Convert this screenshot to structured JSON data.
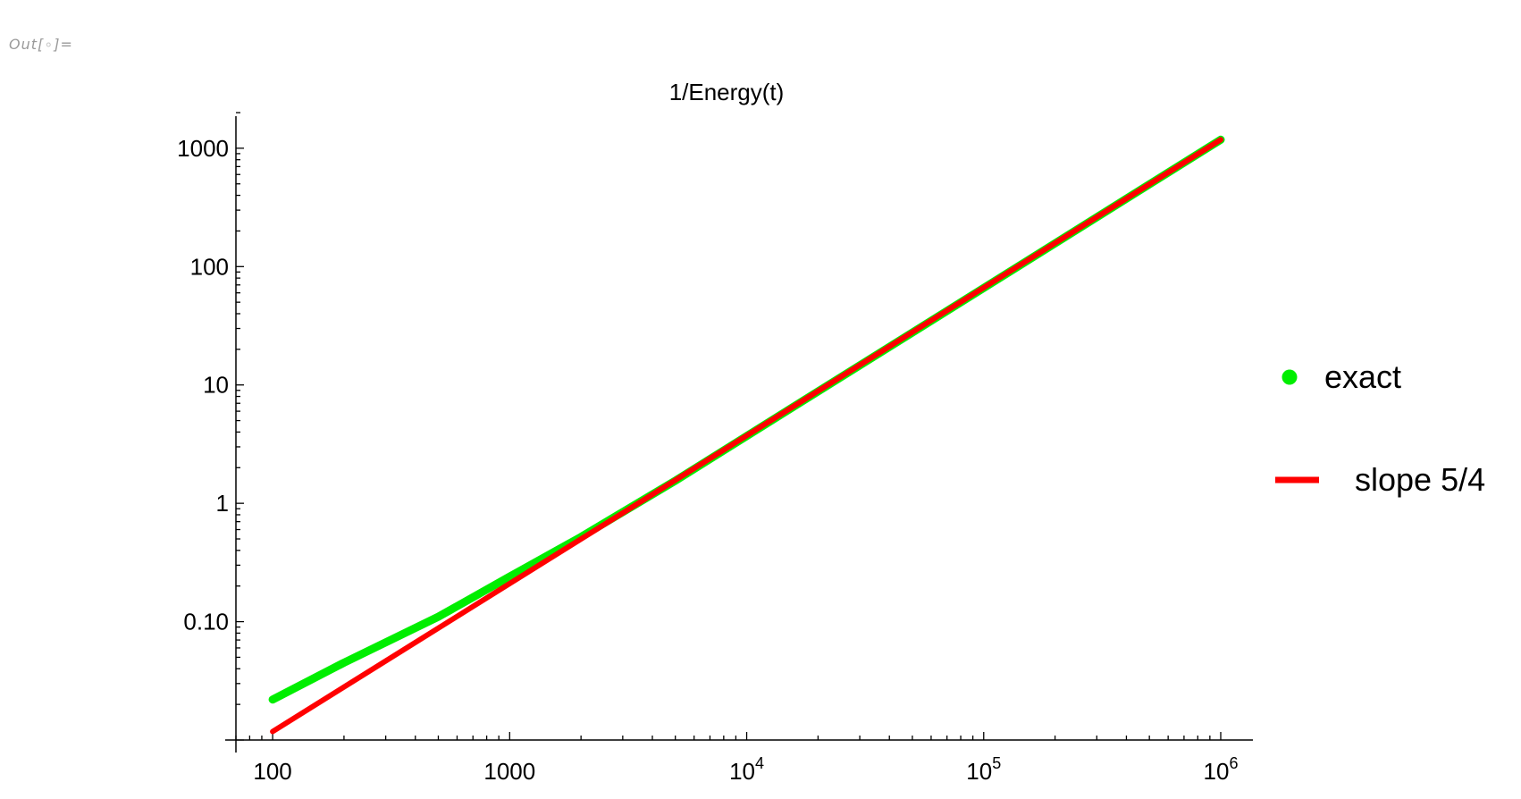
{
  "cell": {
    "out_prefix": "Out[",
    "out_dot": "∘",
    "out_suffix": "]="
  },
  "chart_data": {
    "type": "line",
    "title": "1/Energy(t)",
    "xlabel": "",
    "ylabel": "",
    "xscale": "log",
    "yscale": "log",
    "xlim": [
      70,
      1200000
    ],
    "ylim": [
      0.01,
      2000
    ],
    "x_ticks": [
      {
        "value": 100,
        "base": "100",
        "exp": ""
      },
      {
        "value": 1000,
        "base": "1000",
        "exp": ""
      },
      {
        "value": 10000,
        "base": "10",
        "exp": "4"
      },
      {
        "value": 100000,
        "base": "10",
        "exp": "5"
      },
      {
        "value": 1000000,
        "base": "10",
        "exp": "6"
      }
    ],
    "y_ticks": [
      {
        "value": 0.1,
        "label": "0.10"
      },
      {
        "value": 1,
        "label": "1"
      },
      {
        "value": 10,
        "label": "10"
      },
      {
        "value": 100,
        "label": "100"
      },
      {
        "value": 1000,
        "label": "1000"
      }
    ],
    "grid": false,
    "legend_position": "right",
    "series": [
      {
        "name": "exact",
        "color": "#00ee00",
        "legend_marker": "dot",
        "x": [
          100,
          200,
          500,
          1000,
          2000,
          5000,
          10000,
          100000,
          1000000
        ],
        "y": [
          0.022,
          0.045,
          0.11,
          0.24,
          0.52,
          1.55,
          3.7,
          66,
          1180
        ]
      },
      {
        "name": "slope 5/4",
        "color": "#ff0000",
        "legend_marker": "line",
        "x": [
          100,
          1000000
        ],
        "y": [
          0.0118,
          1180
        ]
      }
    ]
  }
}
